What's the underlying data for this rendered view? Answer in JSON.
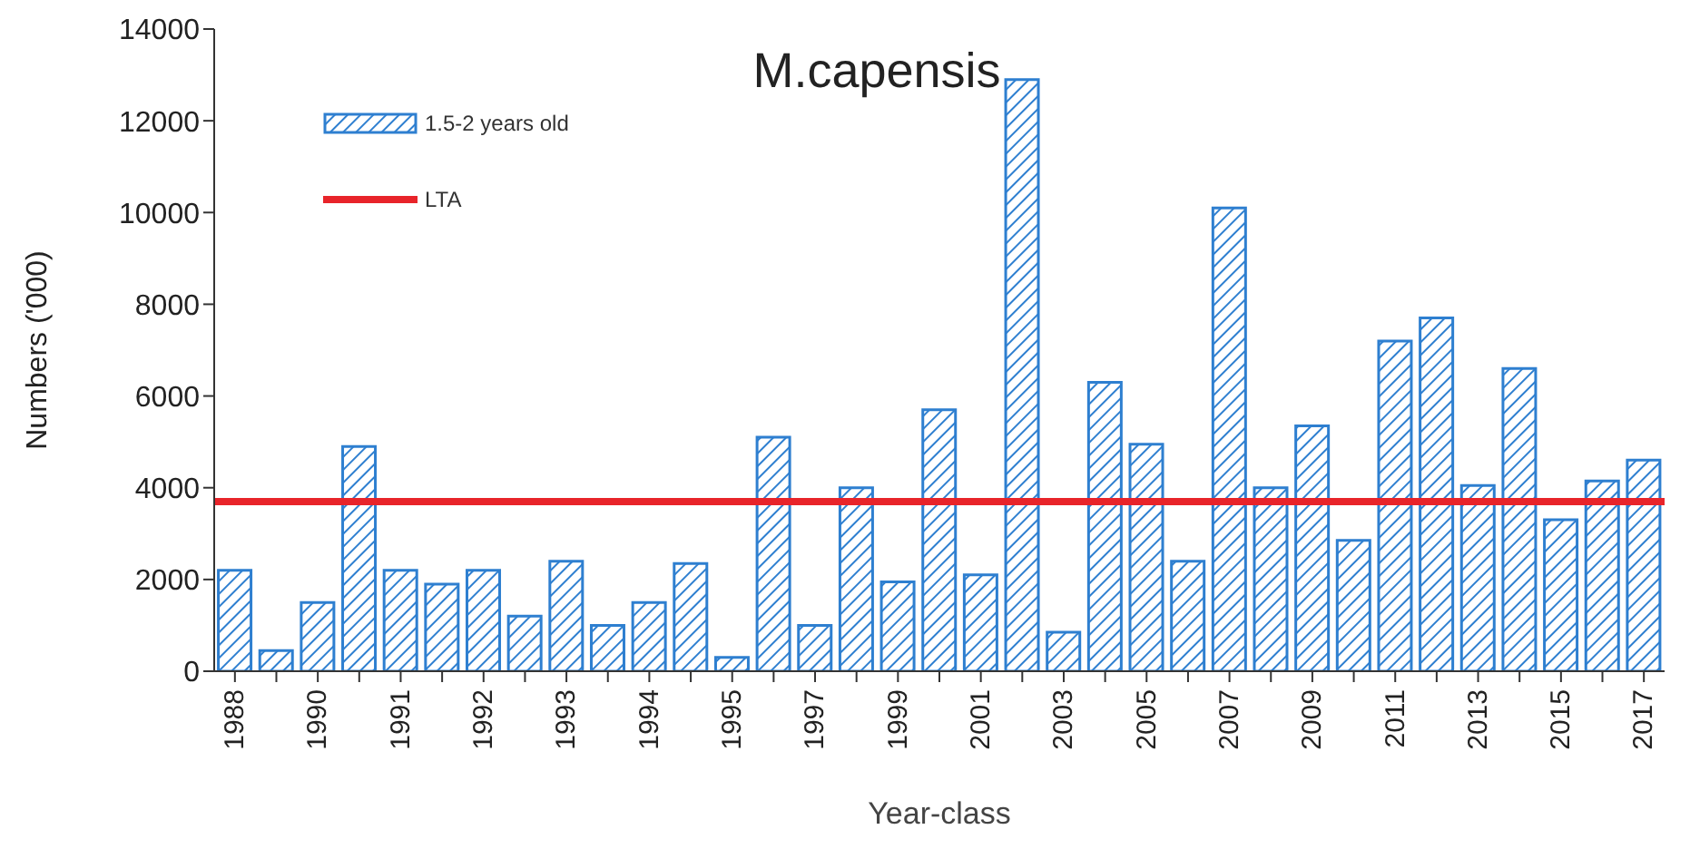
{
  "chart_data": {
    "type": "bar",
    "title": "M.capensis",
    "xlabel": "Year-class",
    "ylabel": "Numbers ('000)",
    "categories": [
      "1988",
      null,
      "1990",
      null,
      "1991",
      null,
      "1992",
      null,
      "1993",
      null,
      "1994",
      null,
      "1995",
      null,
      "1997",
      null,
      "1999",
      null,
      "2001",
      null,
      "2003",
      null,
      "2005",
      null,
      "2007",
      null,
      "2009",
      null,
      "2011",
      null,
      "2013",
      null,
      "2015",
      null,
      "2017"
    ],
    "series": [
      {
        "name": "1.5-2 years old",
        "color": "#2e7fd0",
        "values": [
          2200,
          450,
          1500,
          4900,
          2200,
          1900,
          2200,
          1200,
          2400,
          1000,
          1500,
          2350,
          300,
          5100,
          1000,
          4000,
          1950,
          5700,
          2100,
          12900,
          850,
          6300,
          4950,
          2400,
          10100,
          4000,
          5350,
          2850,
          7200,
          7700,
          4050,
          6600,
          3300,
          4150,
          4600
        ]
      }
    ],
    "ref_lines": [
      {
        "axis": "y",
        "value": 3700,
        "label": "LTA",
        "color": "#e8242a"
      }
    ],
    "ylim": [
      0,
      14000
    ],
    "yticks": [
      0,
      2000,
      4000,
      6000,
      8000,
      10000,
      12000,
      14000
    ],
    "grid": false,
    "legend": "top left"
  }
}
